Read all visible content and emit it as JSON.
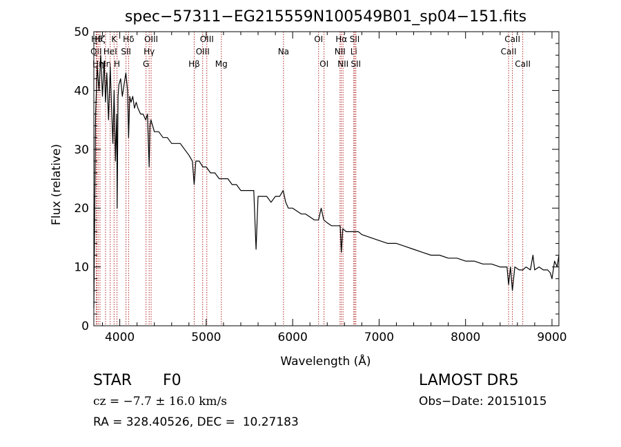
{
  "chart_data": {
    "type": "line",
    "title": "spec−57311−EG215559N100549B01_sp04−151.fits",
    "xlabel": "Wavelength (Å)",
    "ylabel": "Flux (relative)",
    "xlim": [
      3700,
      9080
    ],
    "ylim": [
      0,
      50
    ],
    "xticks": [
      4000,
      5000,
      6000,
      7000,
      8000,
      9000
    ],
    "xtick_labels": [
      "4000",
      "5000",
      "6000",
      "7000",
      "8000",
      "9000"
    ],
    "yticks": [
      0,
      10,
      20,
      30,
      40,
      50
    ],
    "ytick_labels": [
      "0",
      "10",
      "20",
      "30",
      "40",
      "50"
    ],
    "grid": false,
    "line_color": "#000000",
    "marker_color": "#b22222",
    "series": [
      {
        "x": [
          3700,
          3720,
          3740,
          3760,
          3780,
          3800,
          3820,
          3835,
          3850,
          3870,
          3890,
          3905,
          3920,
          3935,
          3950,
          3965,
          3970,
          3980,
          3990,
          4010,
          4030,
          4050,
          4070,
          4090,
          4102,
          4115,
          4130,
          4150,
          4170,
          4190,
          4210,
          4240,
          4270,
          4300,
          4320,
          4340,
          4350,
          4360,
          4380,
          4400,
          4450,
          4500,
          4550,
          4600,
          4650,
          4700,
          4750,
          4800,
          4840,
          4861,
          4880,
          4920,
          4960,
          5000,
          5050,
          5100,
          5150,
          5200,
          5250,
          5300,
          5350,
          5400,
          5450,
          5500,
          5550,
          5577,
          5600,
          5650,
          5700,
          5750,
          5800,
          5850,
          5890,
          5920,
          5950,
          6000,
          6050,
          6100,
          6150,
          6200,
          6250,
          6300,
          6330,
          6360,
          6400,
          6450,
          6500,
          6550,
          6563,
          6580,
          6620,
          6680,
          6720,
          6760,
          6800,
          6900,
          7000,
          7100,
          7200,
          7300,
          7400,
          7500,
          7600,
          7700,
          7800,
          7900,
          8000,
          8100,
          8200,
          8300,
          8400,
          8480,
          8498,
          8520,
          8542,
          8570,
          8620,
          8662,
          8700,
          8750,
          8780,
          8800,
          8850,
          8900,
          8950,
          8980,
          9000,
          9030,
          9060,
          9080
        ],
        "y": [
          3,
          36,
          44,
          40,
          46,
          39,
          45,
          38,
          43,
          35,
          44,
          37,
          31,
          40,
          28,
          36,
          20,
          39,
          41,
          42,
          39,
          41,
          43,
          40,
          32,
          39,
          38,
          39,
          37,
          38,
          37,
          36,
          36,
          35,
          36,
          27,
          34,
          35,
          34,
          33,
          33,
          32,
          32,
          31,
          31,
          31,
          30,
          29,
          28,
          24,
          28,
          28,
          27,
          27,
          26,
          26,
          25,
          25,
          25,
          24,
          24,
          23,
          23,
          23,
          23,
          13,
          22,
          22,
          22,
          21,
          22,
          22,
          23,
          21,
          20,
          20,
          19.5,
          19,
          19,
          18.5,
          18,
          18,
          20,
          18,
          17.5,
          17,
          17,
          17,
          12.5,
          16.5,
          16,
          16,
          16,
          16,
          15.5,
          15,
          14.5,
          14,
          14,
          13.5,
          13,
          12.5,
          12,
          12,
          11.5,
          11.5,
          11,
          11,
          10.5,
          10.5,
          10,
          10,
          7,
          10,
          6,
          10,
          9.5,
          9.5,
          10,
          9.5,
          12,
          9.5,
          10,
          9.5,
          9.5,
          9,
          8,
          11,
          10,
          12
        ]
      }
    ],
    "line_markers": [
      {
        "x": 3727,
        "label": "OII",
        "row": 1
      },
      {
        "x": 3734,
        "label": "Hθ",
        "row": 0
      },
      {
        "x": 3750,
        "label": "Hη",
        "row": 2
      },
      {
        "x": 3771,
        "label": "Hζ",
        "row": 0
      },
      {
        "x": 3835,
        "label": "Hη",
        "row": 2
      },
      {
        "x": 3889,
        "label": "HeI",
        "row": 1
      },
      {
        "x": 3934,
        "label": "K",
        "row": 0
      },
      {
        "x": 3968,
        "label": "H",
        "row": 2
      },
      {
        "x": 4072,
        "label": "SII",
        "row": 1
      },
      {
        "x": 4102,
        "label": "Hδ",
        "row": 0
      },
      {
        "x": 4304,
        "label": "G",
        "row": 2
      },
      {
        "x": 4340,
        "label": "Hγ",
        "row": 1
      },
      {
        "x": 4363,
        "label": "OIII",
        "row": 0
      },
      {
        "x": 4861,
        "label": "Hβ",
        "row": 2
      },
      {
        "x": 4959,
        "label": "OIII",
        "row": 1
      },
      {
        "x": 5007,
        "label": "OIII",
        "row": 0
      },
      {
        "x": 5175,
        "label": "Mg",
        "row": 2
      },
      {
        "x": 5894,
        "label": "Na",
        "row": 1
      },
      {
        "x": 6300,
        "label": "OI",
        "row": 0
      },
      {
        "x": 6363,
        "label": "OI",
        "row": 2
      },
      {
        "x": 6548,
        "label": "NII",
        "row": 1
      },
      {
        "x": 6563,
        "label": "Hα",
        "row": 0
      },
      {
        "x": 6583,
        "label": "NII",
        "row": 2
      },
      {
        "x": 6707,
        "label": "Li",
        "row": 1
      },
      {
        "x": 6717,
        "label": "SII",
        "row": 0
      },
      {
        "x": 6731,
        "label": "SII",
        "row": 2
      },
      {
        "x": 8498,
        "label": "CaII",
        "row": 1
      },
      {
        "x": 8542,
        "label": "CaII",
        "row": 0
      },
      {
        "x": 8662,
        "label": "CaII",
        "row": 2
      }
    ]
  },
  "info": {
    "object_class": "STAR",
    "subclass": "F0",
    "survey": "LAMOST DR5",
    "redshift_text": "cz = −7.7 ± 16.0 km/s",
    "obs_date": "Obs−Date: 20151015",
    "coords": "RA = 328.40526, DEC =  10.27183"
  }
}
